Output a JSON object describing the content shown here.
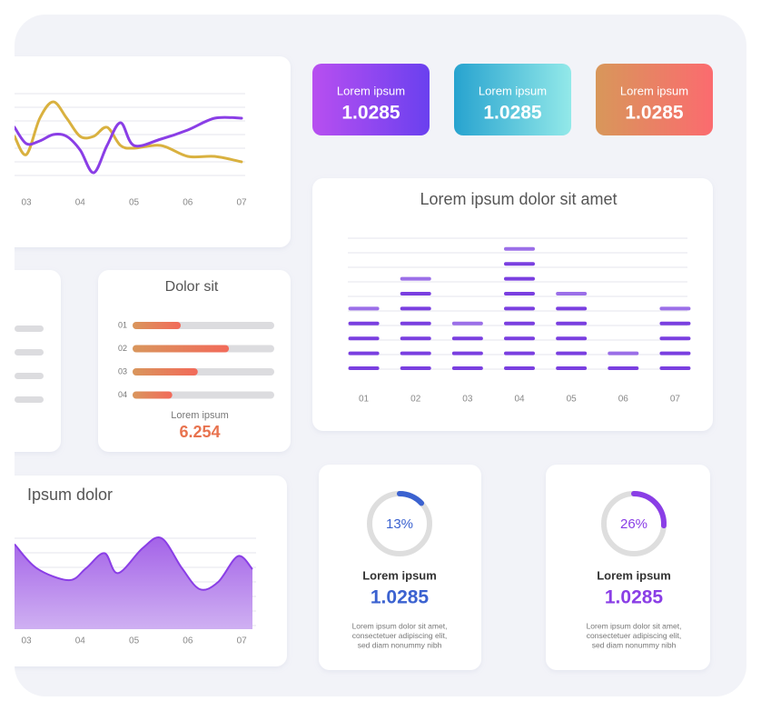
{
  "stat_cards": [
    {
      "label": "Lorem ipsum",
      "value": "1.0285"
    },
    {
      "label": "Lorem ipsum",
      "value": "1.0285"
    },
    {
      "label": "Lorem ipsum",
      "value": "1.0285"
    }
  ],
  "chart_data": [
    {
      "type": "line",
      "x": [
        2.78,
        3,
        3.25,
        3.5,
        3.75,
        4,
        4.25,
        4.5,
        4.75,
        5,
        5.5,
        6,
        6.5,
        7
      ],
      "xlim": [
        2.78,
        7
      ],
      "xticks": [
        {
          "value": 3,
          "label": "03"
        },
        {
          "value": 4,
          "label": "04"
        },
        {
          "value": 5,
          "label": "05"
        },
        {
          "value": 6,
          "label": "06"
        },
        {
          "value": 7,
          "label": "07"
        }
      ],
      "ylim": [
        0,
        100
      ],
      "series": [
        {
          "color": "#d9b13f",
          "values": [
            50,
            30,
            70,
            88,
            70,
            50,
            50,
            60,
            40,
            37,
            40,
            28,
            28,
            22
          ]
        },
        {
          "color": "#8a3ee6",
          "values": [
            60,
            42,
            45,
            52,
            50,
            35,
            10,
            40,
            65,
            40,
            47,
            57,
            70,
            70
          ]
        }
      ]
    },
    {
      "type": "dashbar",
      "title": "Lorem ipsum dolor sit amet",
      "categories": [
        "01",
        "02",
        "03",
        "04",
        "05",
        "06",
        "07"
      ],
      "values": [
        5,
        7,
        4,
        9,
        6,
        2,
        5
      ],
      "color": "#7a3fe0"
    },
    {
      "type": "progress",
      "title": "Dolor sit",
      "categories": [
        "01",
        "02",
        "03",
        "04"
      ],
      "values": [
        34,
        68,
        46,
        28
      ],
      "xlim": [
        0,
        100
      ],
      "annotations": [
        "Lorem ipsum",
        "6.254"
      ]
    },
    {
      "type": "area",
      "title": "Ipsum dolor",
      "x": [
        2.78,
        3.19,
        3.79,
        4.11,
        4.45,
        4.7,
        5.16,
        5.51,
        5.89,
        6.22,
        6.56,
        6.93,
        7.2
      ],
      "values": [
        85,
        61,
        49,
        61,
        76,
        56,
        81,
        91,
        61,
        40,
        47,
        73,
        60
      ],
      "xlim": [
        2.78,
        7.2
      ],
      "xticks": [
        {
          "value": 3,
          "label": "03"
        },
        {
          "value": 4,
          "label": "04"
        },
        {
          "value": 5,
          "label": "05"
        },
        {
          "value": 6,
          "label": "06"
        },
        {
          "value": 7,
          "label": "07"
        }
      ],
      "ylim": [
        0,
        100
      ],
      "color": "#8a3ee6"
    },
    {
      "type": "donut",
      "values": [
        13
      ],
      "value_labels": [
        "13%"
      ],
      "color": "#3b62d0",
      "title": "Lorem ipsum",
      "subtitle": "1.0285",
      "annotations": [
        "Lorem ipsum dolor sit amet,",
        "consectetuer adipiscing elit,",
        "sed diam nonummy nibh"
      ]
    },
    {
      "type": "donut",
      "values": [
        26
      ],
      "value_labels": [
        "26%"
      ],
      "color": "#8a3ee6",
      "title": "Lorem ipsum",
      "subtitle": "1.0285",
      "annotations": [
        "Lorem ipsum dolor sit amet,",
        "consectetuer adipiscing elit,",
        "sed diam nonummy nibh"
      ]
    }
  ]
}
